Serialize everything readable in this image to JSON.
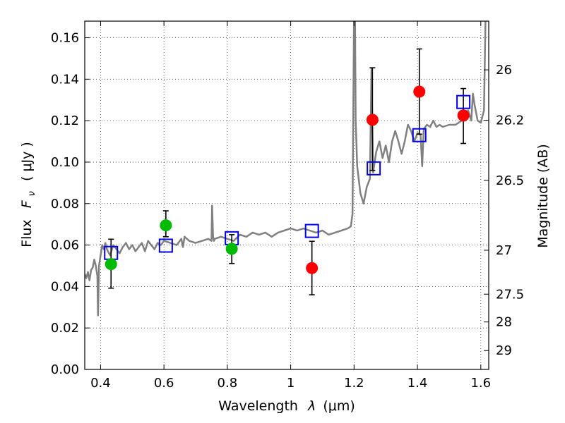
{
  "chart_data": {
    "type": "scatter",
    "title": "",
    "xlabel_prefix": "Wavelength",
    "xlabel_symbol": "λ",
    "xlabel_unit": "(μm)",
    "ylabel_prefix": "Flux",
    "ylabel_symbol": "F",
    "ylabel_sub": "ν",
    "ylabel_unit": "( μJy )",
    "y2label": "Magnitude (AB)",
    "xlim": [
      0.35,
      1.625
    ],
    "ylim": [
      0.0,
      0.168
    ],
    "xticks": [
      0.4,
      0.6,
      0.8,
      1.0,
      1.2,
      1.4,
      1.6
    ],
    "xtick_labels": [
      "0.4",
      "0.6",
      "0.8",
      "1",
      "1.2",
      "1.4",
      "1.6"
    ],
    "yticks": [
      0.0,
      0.02,
      0.04,
      0.06,
      0.08,
      0.1,
      0.12,
      0.14,
      0.16
    ],
    "ytick_labels": [
      "0.00",
      "0.02",
      "0.04",
      "0.06",
      "0.08",
      "0.10",
      "0.12",
      "0.14",
      "0.16"
    ],
    "y2ticks": [
      {
        "label": "26",
        "flux": 0.1445
      },
      {
        "label": "26.2",
        "flux": 0.1202
      },
      {
        "label": "26.5",
        "flux": 0.0912
      },
      {
        "label": "27",
        "flux": 0.0575
      },
      {
        "label": "27.5",
        "flux": 0.0363
      },
      {
        "label": "28",
        "flux": 0.0229
      },
      {
        "label": "29",
        "flux": 0.0091
      }
    ],
    "grid": true,
    "colors": {
      "spectrum": "#808080",
      "green_points": "#00bb00",
      "red_points": "#ff0000",
      "model_boxes": "#0000ee",
      "error_bars": "#000000"
    },
    "series": [
      {
        "name": "model spectrum",
        "kind": "line",
        "x": [
          0.35,
          0.355,
          0.36,
          0.365,
          0.37,
          0.375,
          0.38,
          0.385,
          0.39,
          0.392,
          0.395,
          0.4,
          0.405,
          0.41,
          0.415,
          0.42,
          0.43,
          0.44,
          0.45,
          0.46,
          0.47,
          0.48,
          0.49,
          0.5,
          0.51,
          0.52,
          0.53,
          0.54,
          0.55,
          0.56,
          0.57,
          0.58,
          0.59,
          0.6,
          0.62,
          0.64,
          0.655,
          0.66,
          0.665,
          0.68,
          0.7,
          0.72,
          0.74,
          0.75,
          0.752,
          0.755,
          0.758,
          0.76,
          0.78,
          0.8,
          0.82,
          0.84,
          0.86,
          0.88,
          0.9,
          0.92,
          0.94,
          0.96,
          0.98,
          1.0,
          1.02,
          1.04,
          1.06,
          1.08,
          1.1,
          1.12,
          1.14,
          1.16,
          1.18,
          1.19,
          1.195,
          1.2,
          1.203,
          1.205,
          1.21,
          1.22,
          1.23,
          1.24,
          1.245,
          1.25,
          1.255,
          1.26,
          1.27,
          1.28,
          1.29,
          1.3,
          1.31,
          1.32,
          1.33,
          1.34,
          1.35,
          1.36,
          1.37,
          1.38,
          1.39,
          1.4,
          1.41,
          1.415,
          1.42,
          1.43,
          1.44,
          1.45,
          1.46,
          1.47,
          1.48,
          1.5,
          1.52,
          1.54,
          1.55,
          1.56,
          1.57,
          1.575,
          1.58,
          1.59,
          1.6,
          1.61,
          1.615,
          1.62
        ],
        "y": [
          0.046,
          0.044,
          0.047,
          0.043,
          0.048,
          0.049,
          0.053,
          0.05,
          0.045,
          0.026,
          0.05,
          0.055,
          0.06,
          0.058,
          0.061,
          0.058,
          0.055,
          0.06,
          0.058,
          0.056,
          0.059,
          0.061,
          0.058,
          0.06,
          0.057,
          0.059,
          0.061,
          0.057,
          0.062,
          0.06,
          0.058,
          0.061,
          0.06,
          0.062,
          0.061,
          0.06,
          0.063,
          0.059,
          0.064,
          0.062,
          0.061,
          0.062,
          0.063,
          0.062,
          0.079,
          0.064,
          0.062,
          0.063,
          0.064,
          0.063,
          0.062,
          0.065,
          0.064,
          0.066,
          0.065,
          0.066,
          0.064,
          0.066,
          0.067,
          0.068,
          0.067,
          0.068,
          0.067,
          0.066,
          0.067,
          0.065,
          0.066,
          0.067,
          0.068,
          0.069,
          0.075,
          0.17,
          0.17,
          0.12,
          0.098,
          0.085,
          0.08,
          0.088,
          0.09,
          0.092,
          0.145,
          0.095,
          0.105,
          0.11,
          0.102,
          0.108,
          0.1,
          0.11,
          0.115,
          0.11,
          0.104,
          0.11,
          0.118,
          0.115,
          0.11,
          0.114,
          0.113,
          0.098,
          0.116,
          0.118,
          0.117,
          0.12,
          0.117,
          0.118,
          0.117,
          0.118,
          0.118,
          0.12,
          0.12,
          0.125,
          0.12,
          0.133,
          0.128,
          0.12,
          0.119,
          0.125,
          0.17,
          0.17
        ]
      },
      {
        "name": "observed (green)",
        "kind": "points",
        "points": [
          {
            "x": 0.433,
            "y": 0.0508,
            "err_low": 0.0392,
            "err_high": 0.0628
          },
          {
            "x": 0.606,
            "y": 0.0695,
            "err_low": 0.064,
            "err_high": 0.0765
          },
          {
            "x": 0.814,
            "y": 0.0582,
            "err_low": 0.0511,
            "err_high": 0.065
          }
        ]
      },
      {
        "name": "observed (red)",
        "kind": "points",
        "points": [
          {
            "x": 1.067,
            "y": 0.0489,
            "err_low": 0.036,
            "err_high": 0.0618
          },
          {
            "x": 1.258,
            "y": 0.1204,
            "err_low": 0.096,
            "err_high": 0.1455
          },
          {
            "x": 1.406,
            "y": 0.134,
            "err_low": 0.1135,
            "err_high": 0.1546
          },
          {
            "x": 1.545,
            "y": 0.1225,
            "err_low": 0.109,
            "err_high": 0.1355
          }
        ]
      },
      {
        "name": "model photometry (boxes)",
        "kind": "boxes",
        "points": [
          {
            "x": 0.433,
            "y": 0.0562
          },
          {
            "x": 0.606,
            "y": 0.0597
          },
          {
            "x": 0.814,
            "y": 0.0633
          },
          {
            "x": 1.067,
            "y": 0.0668
          },
          {
            "x": 1.262,
            "y": 0.097
          },
          {
            "x": 1.406,
            "y": 0.113
          },
          {
            "x": 1.545,
            "y": 0.129
          }
        ]
      }
    ]
  }
}
